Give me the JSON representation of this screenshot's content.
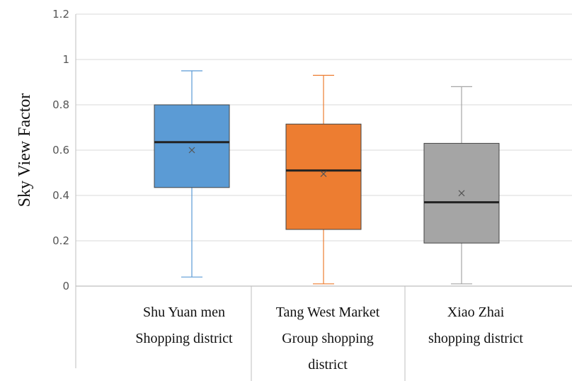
{
  "chart_data": {
    "type": "box",
    "title": "",
    "xlabel": "",
    "ylabel": "Sky View Factor",
    "ylim": [
      0,
      1.2
    ],
    "yticks": [
      "0",
      "0.2",
      "0.4",
      "0.6",
      "0.8",
      "1",
      "1.2"
    ],
    "grid": true,
    "legend": "none",
    "categories": [
      [
        "Shu Yuan men",
        "Shopping district"
      ],
      [
        "Tang West Market",
        "Group shopping",
        "district"
      ],
      [
        "Xiao Zhai",
        "shopping district"
      ]
    ],
    "boxes": [
      {
        "min": 0.04,
        "q1": 0.435,
        "median": 0.635,
        "q3": 0.8,
        "max": 0.95,
        "mean": 0.6,
        "color": "#5b9bd5"
      },
      {
        "min": 0.01,
        "q1": 0.25,
        "median": 0.51,
        "q3": 0.715,
        "max": 0.93,
        "mean": 0.495,
        "color": "#ed7d31"
      },
      {
        "min": 0.01,
        "q1": 0.19,
        "median": 0.37,
        "q3": 0.63,
        "max": 0.88,
        "mean": 0.41,
        "color": "#a5a5a5"
      }
    ]
  }
}
